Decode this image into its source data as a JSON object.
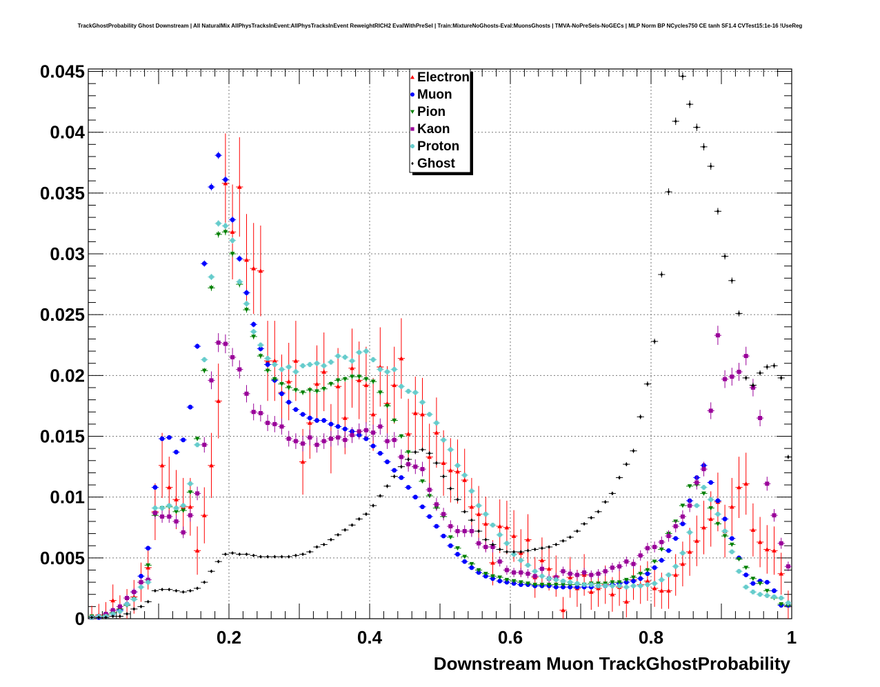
{
  "chart_data": {
    "type": "scatter",
    "title": "TrackGhostProbability Ghost Downstream | All NaturalMix AllPhysTracksInEvent:AllPhysTracksInEvent ReweightRICH2 EvalWithPreSel | Train:MixtureNoGhosts-Eval:MuonsGhosts | TMVA-NoPreSels-NoGECs | MLP Norm BP NCycles750 CE tanh SF1.4 CVTest15:1e-16 !UseReg",
    "xlabel": "Downstream Muon TrackGhostProbability",
    "ylabel": "",
    "xlim": [
      0,
      1
    ],
    "ylim": [
      0,
      0.0452
    ],
    "grid": true,
    "legend_position": "top-center",
    "x_ticks": [
      0.2,
      0.4,
      0.6,
      0.8,
      1
    ],
    "x_tick_labels": [
      "0.2",
      "0.4",
      "0.6",
      "0.8",
      "1"
    ],
    "y_ticks": [
      0,
      0.005,
      0.01,
      0.015,
      0.02,
      0.025,
      0.03,
      0.035,
      0.04,
      0.045
    ],
    "y_tick_labels": [
      "0",
      "0.005",
      "0.01",
      "0.015",
      "0.02",
      "0.025",
      "0.03",
      "0.035",
      "0.04",
      "0.045"
    ],
    "bins": {
      "start": 0,
      "width": 0.01,
      "count": 100
    },
    "series": [
      {
        "name": "Electron",
        "color": "#ff0000",
        "marker": "triangle-up",
        "values": [
          0.0002,
          0.0003,
          0.0004,
          0.0015,
          0.0008,
          0.0012,
          0.0018,
          0.003,
          0.0042,
          0.0088,
          0.0126,
          0.0108,
          0.0098,
          0.0092,
          0.0092,
          0.0056,
          0.0085,
          0.0126,
          0.0179,
          0.0358,
          0.0318,
          0.0355,
          0.0295,
          0.0288,
          0.0286,
          0.0212,
          0.0212,
          0.0186,
          0.0195,
          0.0212,
          0.0129,
          0.0161,
          0.0193,
          0.0203,
          0.0148,
          0.0191,
          0.0165,
          0.0206,
          0.0196,
          0.0192,
          0.0168,
          0.0207,
          0.0177,
          0.0192,
          0.0214,
          0.0152,
          0.0169,
          0.0168,
          0.0133,
          0.0153,
          0.0128,
          0.0122,
          0.0121,
          0.0114,
          0.0092,
          0.0086,
          0.0078,
          0.0046,
          0.0076,
          0.0075,
          0.0068,
          0.0054,
          0.0065,
          0.0034,
          0.0048,
          0.0041,
          0.0035,
          0.0007,
          0.0034,
          0.0025,
          0.0036,
          0.0022,
          0.0025,
          0.0028,
          0.002,
          0.0026,
          0.0014,
          0.0032,
          0.0028,
          0.0031,
          0.0025,
          0.0023,
          0.0023,
          0.0036,
          0.0045,
          0.0055,
          0.0064,
          0.0075,
          0.0082,
          0.0096,
          0.0072,
          0.0092,
          0.0108,
          0.0111,
          0.0073,
          0.0063,
          0.0057,
          0.0056,
          0.0037,
          0.0011
        ]
      },
      {
        "name": "Muon",
        "color": "#0000ff",
        "marker": "circle",
        "values": [
          0.0001,
          0.0001,
          0.0002,
          0.0004,
          0.0007,
          0.0012,
          0.0022,
          0.0035,
          0.0058,
          0.0108,
          0.0148,
          0.0149,
          0.0137,
          0.0147,
          0.0174,
          0.0224,
          0.0292,
          0.0355,
          0.0381,
          0.0361,
          0.0328,
          0.0296,
          0.0268,
          0.0242,
          0.0222,
          0.0209,
          0.0196,
          0.0185,
          0.0178,
          0.0172,
          0.0168,
          0.0165,
          0.0163,
          0.0163,
          0.016,
          0.0158,
          0.0156,
          0.0154,
          0.0151,
          0.0148,
          0.0142,
          0.0136,
          0.0129,
          0.0122,
          0.0116,
          0.0108,
          0.01,
          0.0092,
          0.0084,
          0.0076,
          0.0068,
          0.006,
          0.0053,
          0.0047,
          0.0042,
          0.0038,
          0.0035,
          0.0033,
          0.0031,
          0.003,
          0.0029,
          0.0028,
          0.0028,
          0.0027,
          0.0027,
          0.0027,
          0.0026,
          0.0026,
          0.0026,
          0.0026,
          0.0026,
          0.0026,
          0.0027,
          0.0027,
          0.0028,
          0.0029,
          0.003,
          0.0031,
          0.0033,
          0.0037,
          0.0042,
          0.0048,
          0.0056,
          0.0066,
          0.0078,
          0.0097,
          0.0116,
          0.0126,
          0.0112,
          0.0097,
          0.0082,
          0.0066,
          0.005,
          0.0036,
          0.0029,
          0.0031,
          0.003,
          0.0023,
          0.0011,
          0.0011
        ]
      },
      {
        "name": "Pion",
        "color": "#008000",
        "marker": "triangle-down",
        "values": [
          0.0002,
          0.0002,
          0.0003,
          0.0005,
          0.0008,
          0.0011,
          0.0016,
          0.003,
          0.0044,
          0.0085,
          0.0091,
          0.0092,
          0.0088,
          0.0089,
          0.0104,
          0.0148,
          0.0204,
          0.0272,
          0.0316,
          0.0318,
          0.03,
          0.0275,
          0.0254,
          0.0232,
          0.0216,
          0.0204,
          0.0197,
          0.0193,
          0.019,
          0.0188,
          0.0186,
          0.0188,
          0.0187,
          0.0189,
          0.0193,
          0.0196,
          0.0197,
          0.0199,
          0.0199,
          0.0197,
          0.0195,
          0.0186,
          0.0175,
          0.0163,
          0.015,
          0.0137,
          0.0125,
          0.0113,
          0.0101,
          0.0091,
          0.0084,
          0.0067,
          0.0058,
          0.0051,
          0.0045,
          0.004,
          0.0037,
          0.0035,
          0.0034,
          0.0032,
          0.0031,
          0.003,
          0.0029,
          0.0028,
          0.0028,
          0.0028,
          0.0028,
          0.0028,
          0.0028,
          0.0028,
          0.0028,
          0.0029,
          0.0029,
          0.0029,
          0.003,
          0.003,
          0.0032,
          0.0034,
          0.0037,
          0.004,
          0.0047,
          0.0057,
          0.007,
          0.008,
          0.0093,
          0.0109,
          0.011,
          0.0103,
          0.0091,
          0.0078,
          0.0068,
          0.0061,
          0.0049,
          0.0042,
          0.0033,
          0.0029,
          0.0023,
          0.0017,
          0.0012,
          0.0011
        ]
      },
      {
        "name": "Kaon",
        "color": "#990099",
        "marker": "square",
        "values": [
          0.0001,
          0.0002,
          0.0004,
          0.0007,
          0.001,
          0.0017,
          0.0022,
          0.003,
          0.0032,
          0.0087,
          0.0084,
          0.0084,
          0.008,
          0.0071,
          0.0085,
          0.0103,
          0.0143,
          0.0196,
          0.0227,
          0.0226,
          0.0215,
          0.0205,
          0.0185,
          0.017,
          0.0169,
          0.0161,
          0.016,
          0.0158,
          0.0148,
          0.0146,
          0.0144,
          0.0149,
          0.0143,
          0.0146,
          0.0148,
          0.0149,
          0.0147,
          0.0151,
          0.0154,
          0.0155,
          0.0153,
          0.0158,
          0.0146,
          0.0147,
          0.0133,
          0.0127,
          0.0125,
          0.0123,
          0.0106,
          0.0094,
          0.0086,
          0.0076,
          0.0072,
          0.0072,
          0.0072,
          0.0062,
          0.0059,
          0.0059,
          0.0047,
          0.004,
          0.0038,
          0.0038,
          0.0037,
          0.0035,
          0.0041,
          0.0033,
          0.0034,
          0.0039,
          0.0037,
          0.0036,
          0.0038,
          0.0036,
          0.0037,
          0.0039,
          0.0042,
          0.0043,
          0.0047,
          0.0045,
          0.0052,
          0.0058,
          0.0059,
          0.0063,
          0.0068,
          0.0076,
          0.0084,
          0.0093,
          0.0112,
          0.0123,
          0.0171,
          0.0233,
          0.0197,
          0.0199,
          0.0203,
          0.0216,
          0.019,
          0.0165,
          0.0111,
          0.0085,
          0.0062,
          0.0043
        ]
      },
      {
        "name": "Proton",
        "color": "#66cccc",
        "marker": "cross",
        "values": [
          0.0001,
          0.0002,
          0.0002,
          0.0004,
          0.0006,
          0.0012,
          0.0016,
          0.0026,
          0.003,
          0.0091,
          0.0091,
          0.0093,
          0.0091,
          0.0093,
          0.0111,
          0.0143,
          0.0213,
          0.0281,
          0.0325,
          0.0323,
          0.0311,
          0.0277,
          0.0259,
          0.0236,
          0.0225,
          0.0214,
          0.0209,
          0.0205,
          0.0207,
          0.0203,
          0.0208,
          0.0209,
          0.021,
          0.0208,
          0.0211,
          0.0216,
          0.0215,
          0.0212,
          0.0219,
          0.022,
          0.0213,
          0.0205,
          0.0203,
          0.0205,
          0.0191,
          0.0187,
          0.0186,
          0.0178,
          0.0168,
          0.0161,
          0.0147,
          0.0139,
          0.0126,
          0.0118,
          0.0105,
          0.0093,
          0.0086,
          0.0077,
          0.0069,
          0.0062,
          0.0053,
          0.0048,
          0.0044,
          0.0039,
          0.0035,
          0.0033,
          0.0032,
          0.0031,
          0.003,
          0.0029,
          0.0028,
          0.0028,
          0.0027,
          0.0027,
          0.0027,
          0.0027,
          0.0026,
          0.0027,
          0.0027,
          0.0028,
          0.0029,
          0.0032,
          0.0036,
          0.0043,
          0.0054,
          0.0071,
          0.0093,
          0.0108,
          0.0098,
          0.0086,
          0.0072,
          0.0055,
          0.0039,
          0.0026,
          0.0022,
          0.002,
          0.0019,
          0.0018,
          0.0017,
          0.0013
        ]
      },
      {
        "name": "Ghost",
        "color": "#000000",
        "marker": "diamond",
        "values": [
          0.0001,
          0.0001,
          0.0001,
          0.0002,
          0.0002,
          0.0004,
          0.0008,
          0.001,
          0.0014,
          0.0023,
          0.0024,
          0.0024,
          0.0023,
          0.0022,
          0.0023,
          0.0025,
          0.003,
          0.0039,
          0.0047,
          0.0053,
          0.0054,
          0.0053,
          0.0053,
          0.0052,
          0.0051,
          0.0051,
          0.0051,
          0.0051,
          0.0051,
          0.0052,
          0.0053,
          0.0055,
          0.0059,
          0.0061,
          0.0065,
          0.0069,
          0.0073,
          0.0077,
          0.0082,
          0.0086,
          0.0093,
          0.0101,
          0.0109,
          0.0117,
          0.0125,
          0.0131,
          0.0137,
          0.0139,
          0.0136,
          0.0128,
          0.0117,
          0.0107,
          0.0098,
          0.0088,
          0.0081,
          0.0072,
          0.0065,
          0.0061,
          0.0057,
          0.0055,
          0.0055,
          0.0055,
          0.0056,
          0.0057,
          0.0058,
          0.0059,
          0.0061,
          0.0064,
          0.0067,
          0.0072,
          0.0078,
          0.0083,
          0.0088,
          0.0096,
          0.0103,
          0.0116,
          0.0127,
          0.0138,
          0.0166,
          0.0193,
          0.0228,
          0.0283,
          0.0351,
          0.0409,
          0.0446,
          0.0423,
          0.0404,
          0.0388,
          0.0372,
          0.0335,
          0.0298,
          0.0278,
          0.0251,
          0.0198,
          0.0192,
          0.0202,
          0.0207,
          0.0208,
          0.0198,
          0.0133
        ]
      }
    ]
  }
}
